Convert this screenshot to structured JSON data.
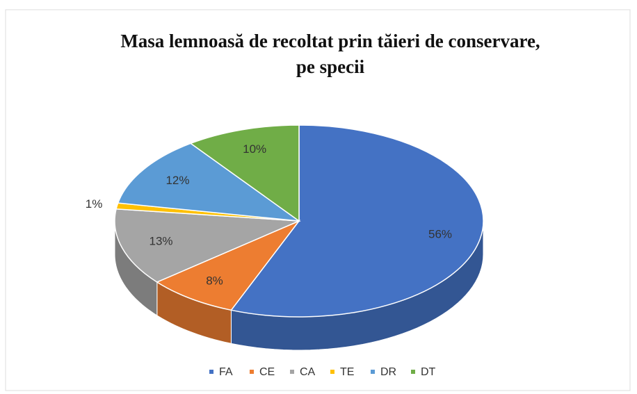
{
  "chart_data": {
    "type": "pie",
    "title": [
      "Masa lemnoasă de recoltat prin tăieri de conservare,",
      "pe specii"
    ],
    "categories": [
      "FA",
      "CE",
      "CA",
      "TE",
      "DR",
      "DT"
    ],
    "values": [
      56,
      8,
      13,
      1,
      12,
      10
    ],
    "value_labels": [
      "56%",
      "8%",
      "13%",
      "1%",
      "12%",
      "10%"
    ],
    "colors": [
      "#4472c4",
      "#ed7d31",
      "#a5a5a5",
      "#ffc000",
      "#5b9bd5",
      "#70ad47"
    ],
    "legend": "bottom"
  }
}
